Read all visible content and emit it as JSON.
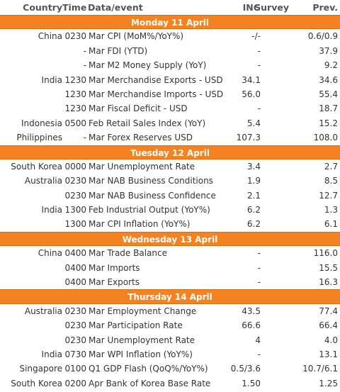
{
  "header": {
    "country": "Country",
    "time": "Time",
    "event": "Data/event",
    "ing": "ING",
    "survey": "Survey",
    "prev": "Prev."
  },
  "sections": [
    {
      "day": "Monday 11 April",
      "rows": [
        {
          "country": "China",
          "time": "0230",
          "event": "Mar CPI (MoM%/YoY%)",
          "ing": "-/-",
          "survey": "",
          "prev": "0.6/0.9"
        },
        {
          "country": "",
          "time": "-",
          "event": "Mar FDI (YTD)",
          "ing": "-",
          "survey": "",
          "prev": "37.9"
        },
        {
          "country": "",
          "time": "-",
          "event": "Mar M2 Money Supply (YoY)",
          "ing": "-",
          "survey": "",
          "prev": "9.2"
        },
        {
          "country": "India",
          "time": "1230",
          "event": "Mar Merchandise Exports - USD",
          "ing": "34.1",
          "survey": "",
          "prev": "34.6"
        },
        {
          "country": "",
          "time": "1230",
          "event": "Mar Merchandise Imports - USD",
          "ing": "56.0",
          "survey": "",
          "prev": "55.4"
        },
        {
          "country": "",
          "time": "1230",
          "event": "Mar Fiscal Deficit - USD",
          "ing": "-",
          "survey": "",
          "prev": "18.7"
        },
        {
          "country": "Indonesia",
          "time": "0500",
          "event": "Feb Retail Sales Index (YoY)",
          "ing": "5.4",
          "survey": "",
          "prev": "15.2"
        },
        {
          "country": "Philippines",
          "time": "-",
          "event": "Mar Forex Reserves USD",
          "ing": "107.3",
          "survey": "",
          "prev": "108.0"
        }
      ]
    },
    {
      "day": "Tuesday 12 April",
      "rows": [
        {
          "country": "South Korea",
          "time": "0000",
          "event": "Mar Unemployment Rate",
          "ing": "3.4",
          "survey": "",
          "prev": "2.7"
        },
        {
          "country": "Australia",
          "time": "0230",
          "event": "Mar NAB Business Conditions",
          "ing": "1.9",
          "survey": "",
          "prev": "8.5"
        },
        {
          "country": "",
          "time": "0230",
          "event": "Mar NAB Business Confidence",
          "ing": "2.1",
          "survey": "",
          "prev": "12.7"
        },
        {
          "country": "India",
          "time": "1300",
          "event": "Feb Industrial Output (YoY%)",
          "ing": "6.2",
          "survey": "",
          "prev": "1.3"
        },
        {
          "country": "",
          "time": "1300",
          "event": "Mar CPI Inflation (YoY%)",
          "ing": "6.2",
          "survey": "",
          "prev": "6.1"
        }
      ]
    },
    {
      "day": "Wednesday 13 April",
      "rows": [
        {
          "country": "China",
          "time": "0400",
          "event": "Mar Trade Balance",
          "ing": "-",
          "survey": "",
          "prev": "116.0"
        },
        {
          "country": "",
          "time": "0400",
          "event": "Mar Imports",
          "ing": "-",
          "survey": "",
          "prev": "15.5"
        },
        {
          "country": "",
          "time": "0400",
          "event": "Mar Exports",
          "ing": "-",
          "survey": "",
          "prev": "16.3"
        }
      ]
    },
    {
      "day": "Thursday 14 April",
      "rows": [
        {
          "country": "Australia",
          "time": "0230",
          "event": "Mar Employment Change",
          "ing": "43.5",
          "survey": "",
          "prev": "77.4"
        },
        {
          "country": "",
          "time": "0230",
          "event": "Mar Participation Rate",
          "ing": "66.6",
          "survey": "",
          "prev": "66.4"
        },
        {
          "country": "",
          "time": "0230",
          "event": "Mar Unemployment Rate",
          "ing": "4",
          "survey": "",
          "prev": "4.0"
        },
        {
          "country": "India",
          "time": "0730",
          "event": "Mar WPI Inflation (YoY%)",
          "ing": "-",
          "survey": "",
          "prev": "13.1"
        },
        {
          "country": "Singapore",
          "time": "0100",
          "event": "Q1 GDP Flash (QoQ%/YoY%)",
          "ing": "0.5/3.6",
          "survey": "",
          "prev": "10.7/6.1"
        },
        {
          "country": "South Korea",
          "time": "0200",
          "event": "Apr Bank of Korea Base Rate",
          "ing": "1.50",
          "survey": "",
          "prev": "1.25"
        }
      ]
    }
  ],
  "colors": {
    "accent": "#f58220",
    "text": "#333333"
  }
}
